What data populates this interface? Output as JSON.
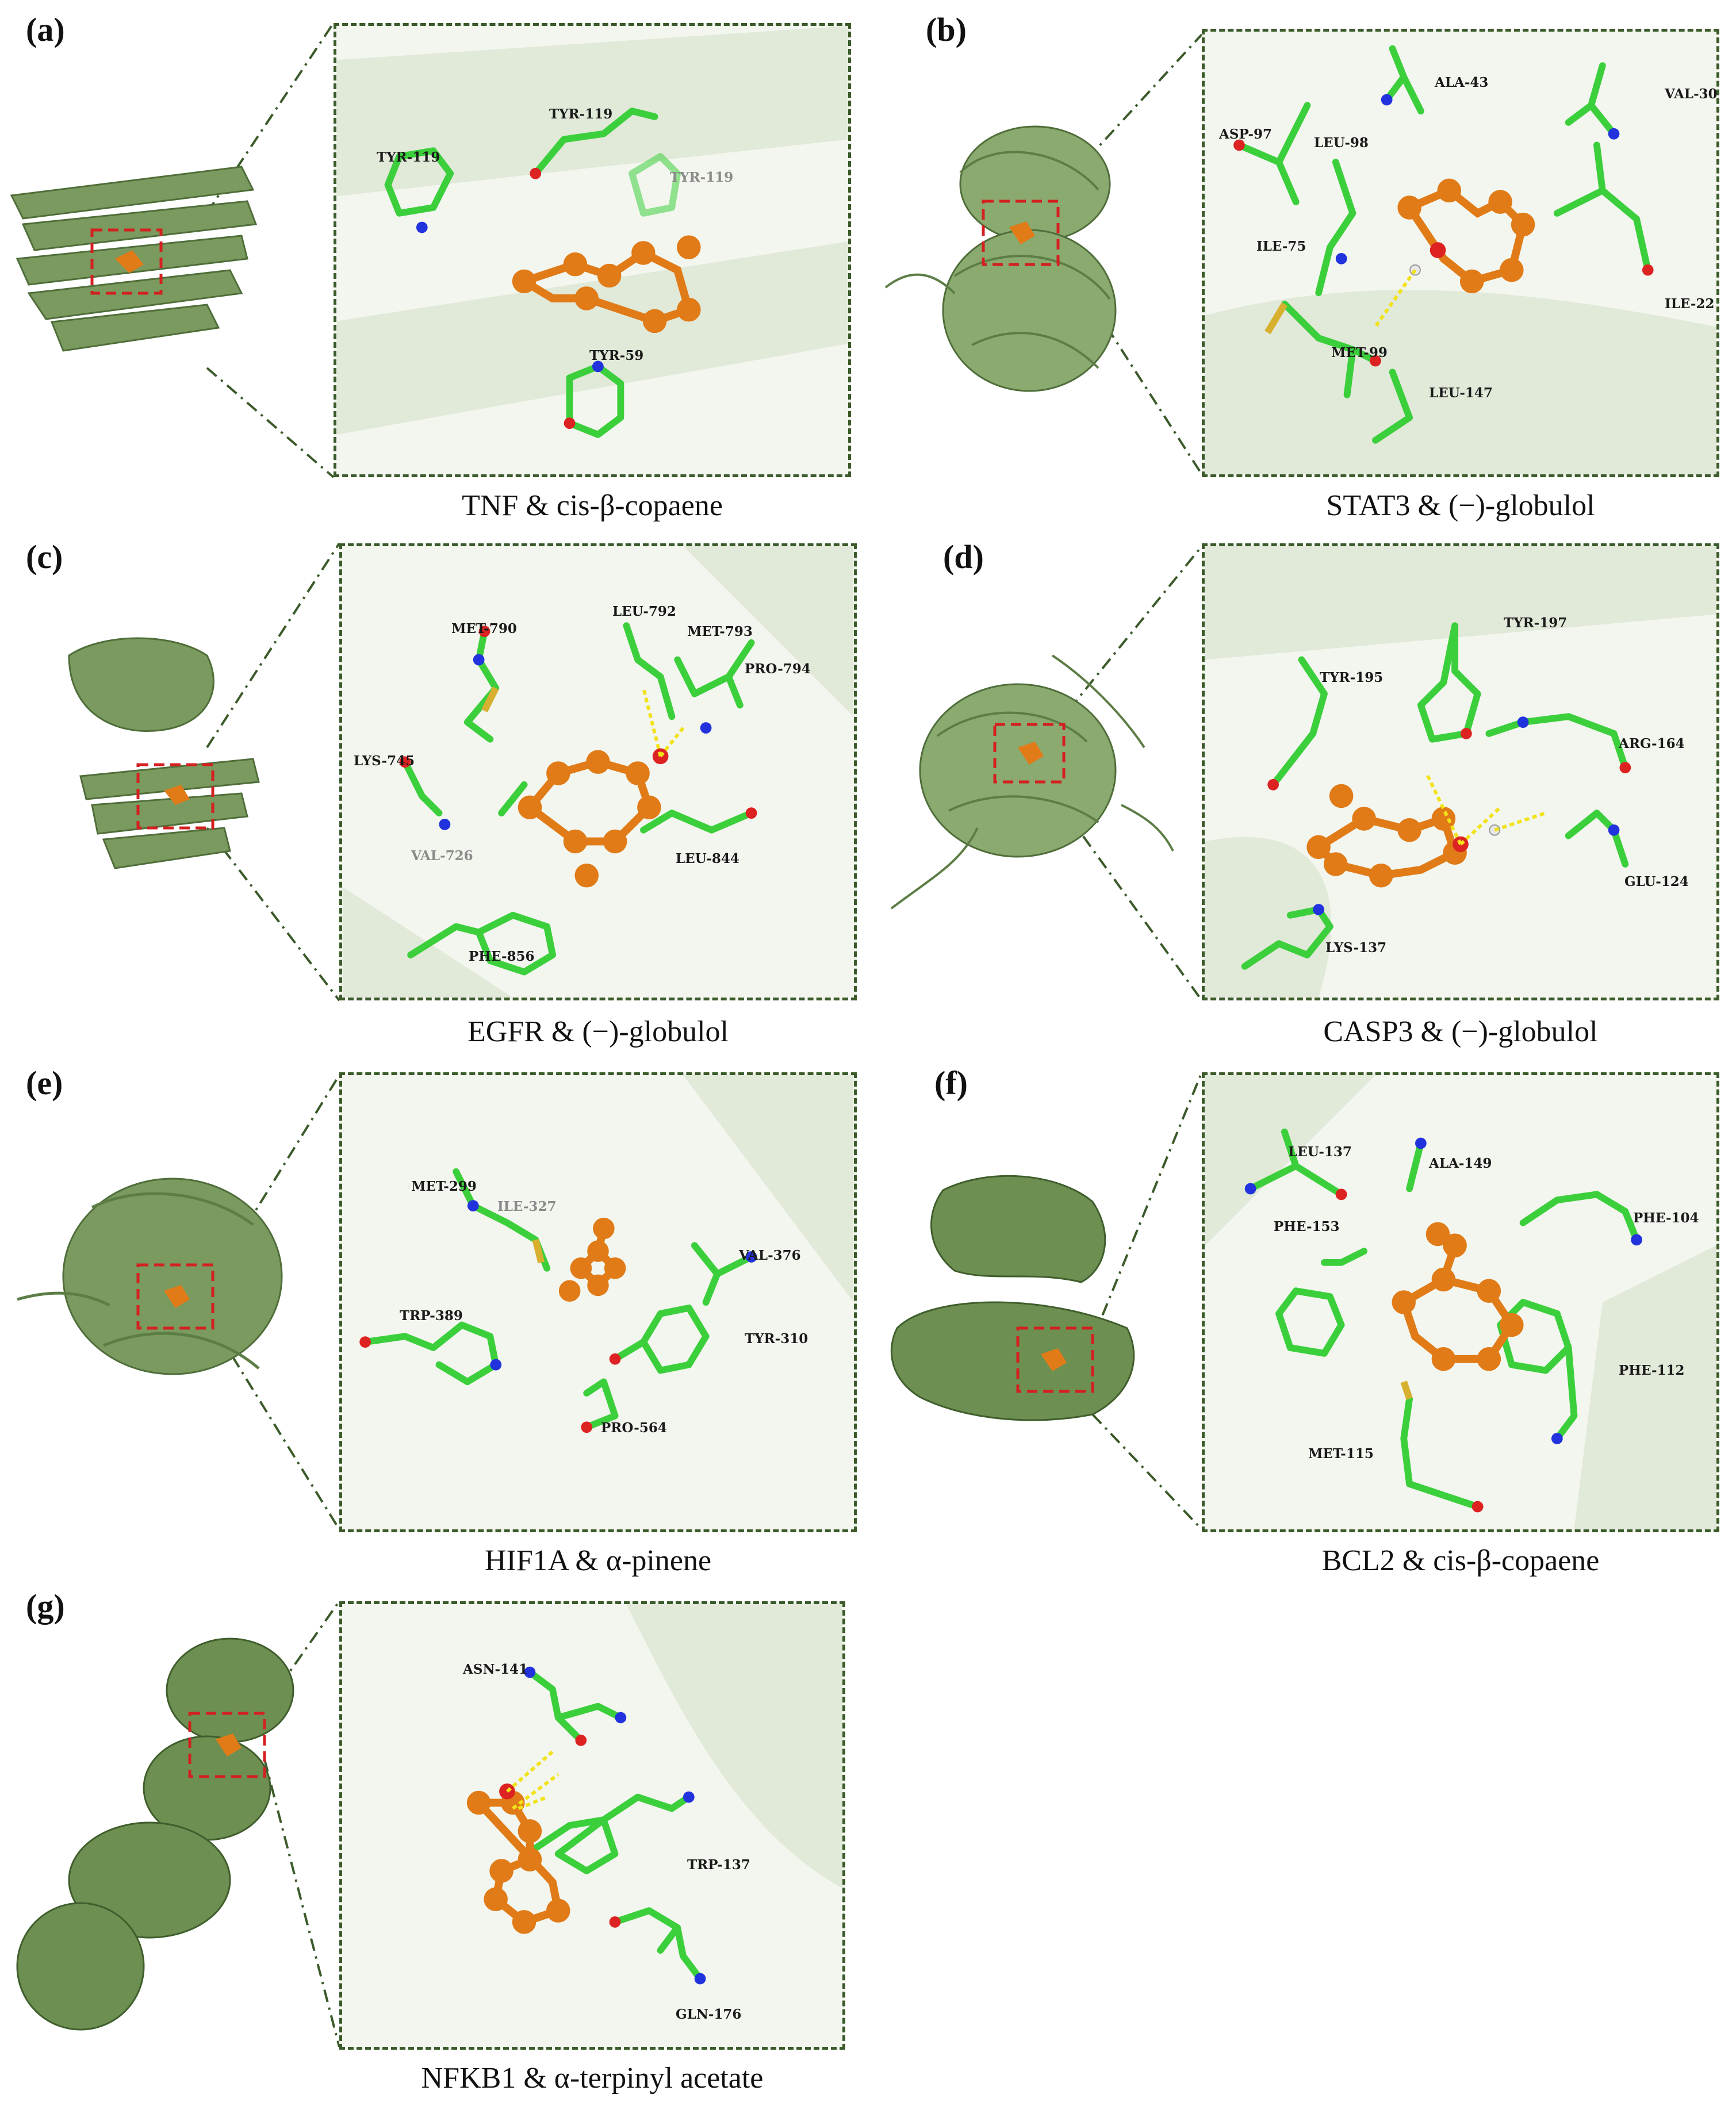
{
  "colors": {
    "protein": "#7a9a5f",
    "protein_dark": "#4f6e3a",
    "residue": "#3ccf3c",
    "ligand": "#e07b17",
    "nitrogen": "#2233dd",
    "oxygen": "#dd2222",
    "sulfur": "#d8b030",
    "hbond": "#f2e21a",
    "box": "#3b5a2a",
    "pocket_box": "#d42020"
  },
  "panels": [
    {
      "id": "a",
      "letter": "(a)",
      "caption": "TNF & cis-β-copaene",
      "residues": [
        "TYR-119",
        "TYR-119",
        "TYR-119",
        "TYR-59"
      ]
    },
    {
      "id": "b",
      "letter": "(b)",
      "caption": "STAT3 & (−)-globulol",
      "residues": [
        "ALA-43",
        "VAL-30",
        "ASP-97",
        "LEU-98",
        "ILE-75",
        "ILE-22",
        "MET-99",
        "LEU-147"
      ]
    },
    {
      "id": "c",
      "letter": "(c)",
      "caption": "EGFR & (−)-globulol",
      "residues": [
        "LEU-792",
        "MET-790",
        "MET-793",
        "PRO-794",
        "LYS-745",
        "VAL-726",
        "LEU-844",
        "PHE-856"
      ]
    },
    {
      "id": "d",
      "letter": "(d)",
      "caption": "CASP3 & (−)-globulol",
      "residues": [
        "TYR-195",
        "TYR-197",
        "ARG-164",
        "GLU-124",
        "LYS-137"
      ]
    },
    {
      "id": "e",
      "letter": "(e)",
      "caption": "HIF1A & α-pinene",
      "residues": [
        "MET-299",
        "ILE-327",
        "VAL-376",
        "TRP-389",
        "TYR-310",
        "PRO-564"
      ]
    },
    {
      "id": "f",
      "letter": "(f)",
      "caption": "BCL2 & cis-β-copaene",
      "residues": [
        "LEU-137",
        "ALA-149",
        "PHE-153",
        "PHE-104",
        "PHE-112",
        "MET-115"
      ]
    },
    {
      "id": "g",
      "letter": "(g)",
      "caption": "NFKB1 & α-terpinyl acetate",
      "residues": [
        "ASN-141",
        "TRP-137",
        "GLN-176"
      ]
    }
  ]
}
